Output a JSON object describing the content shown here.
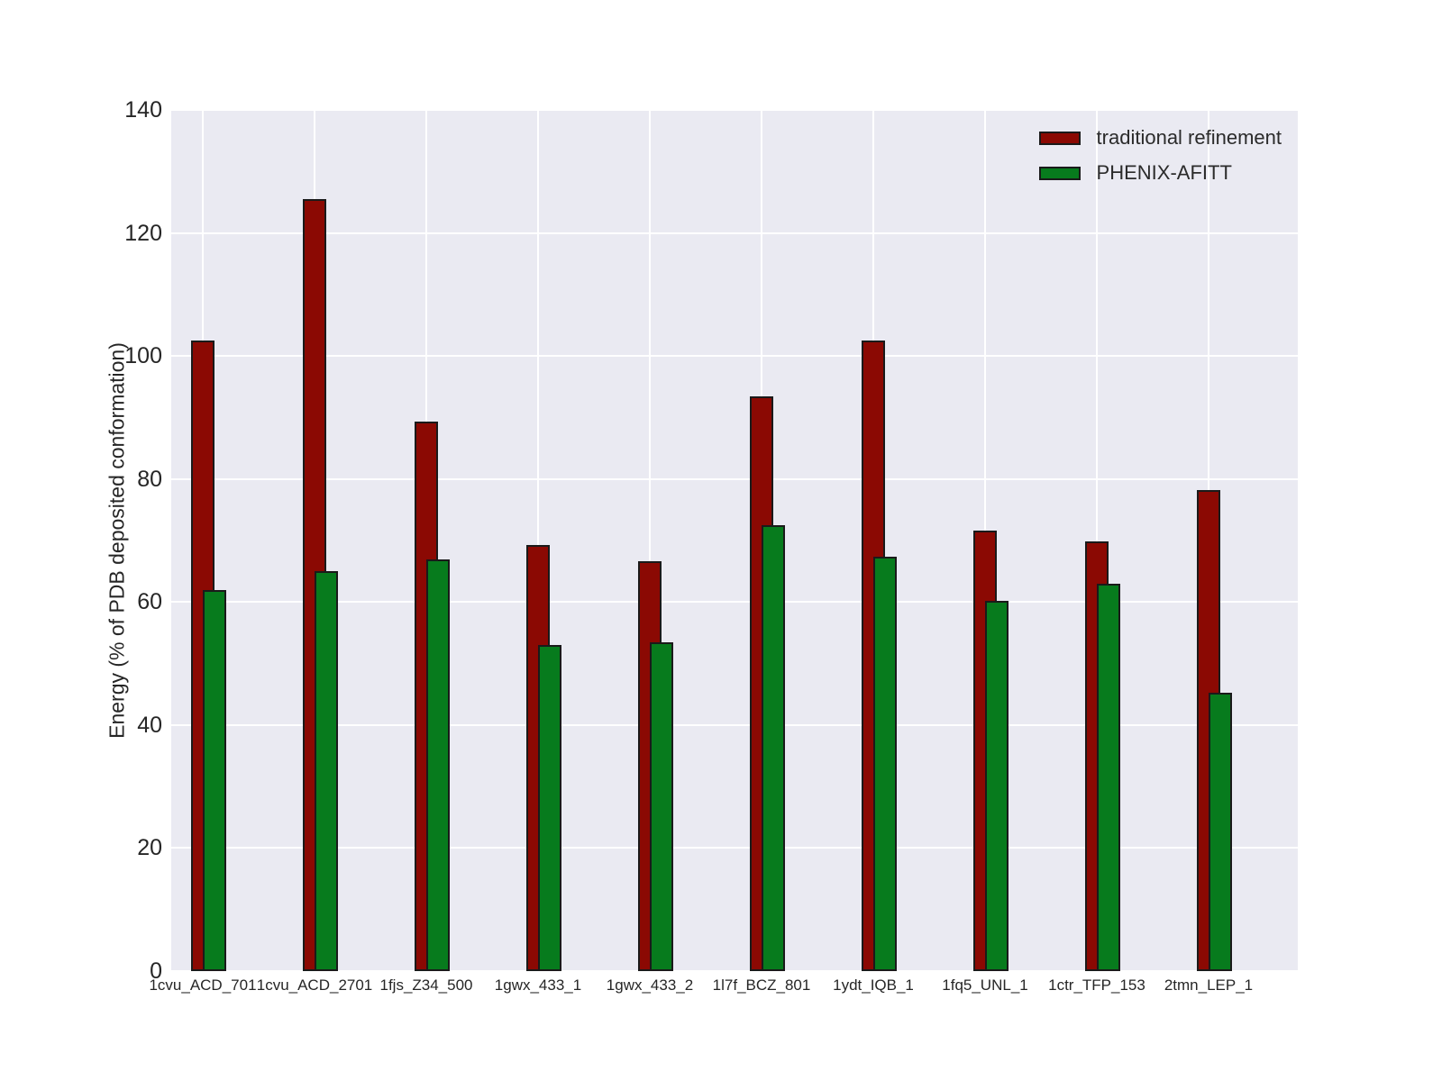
{
  "chart_data": {
    "type": "bar",
    "title": "",
    "xlabel": "",
    "ylabel": "Energy (% of PDB deposited conformation)",
    "ylim": [
      0,
      140
    ],
    "yticks": [
      0,
      20,
      40,
      60,
      80,
      100,
      120,
      140
    ],
    "grid": true,
    "grid_color": "#ffffff",
    "axes_background": "#eaeaf2",
    "legend_position": "upper right",
    "bar_style": "overlapping",
    "categories": [
      "1cvu_ACD_701",
      "1cvu_ACD_2701",
      "1fjs_Z34_500",
      "1gwx_433_1",
      "1gwx_433_2",
      "1l7f_BCZ_801",
      "1ydt_IQB_1",
      "1fq5_UNL_1",
      "1ctr_TFP_153",
      "2tmn_LEP_1"
    ],
    "series": [
      {
        "name": "traditional refinement",
        "color": "#8b0903",
        "values": [
          102.5,
          125.5,
          89.3,
          69.3,
          66.6,
          93.5,
          102.5,
          71.6,
          69.8,
          78.2
        ]
      },
      {
        "name": "PHENIX-AFITT",
        "color": "#077b1d",
        "values": [
          62,
          65,
          67,
          53,
          53.5,
          72.5,
          67.4,
          60.2,
          63,
          45.2
        ]
      }
    ]
  },
  "colors": {
    "bar_edge": "#1a1a1a",
    "text": "#262626",
    "figure_background": "#ffffff"
  }
}
